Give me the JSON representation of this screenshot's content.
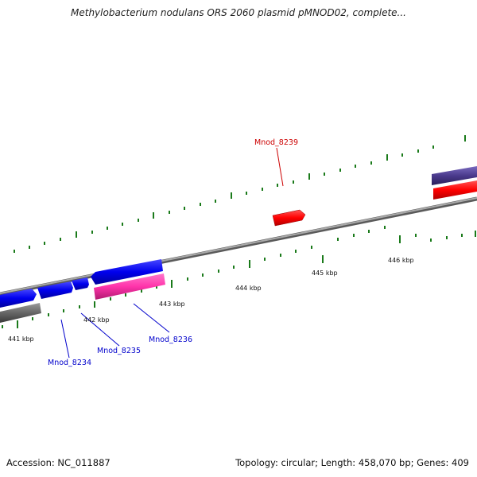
{
  "title": "Methylobacterium nodulans ORS 2060 plasmid pMNOD02, complete...",
  "accession": "Accession: NC_011887",
  "summary": "Topology: circular; Length: 458,070 bp; Genes: 409",
  "kbp_labels": [
    "441 kbp",
    "442 kbp",
    "443 kbp",
    "444 kbp",
    "445 kbp",
    "446 kbp"
  ],
  "gene_labels": {
    "mnod_8239": "Mnod_8239",
    "mnod_8234": "Mnod_8234",
    "mnod_8235": "Mnod_8235",
    "mnod_8236": "Mnod_8236"
  },
  "colors": {
    "forward_cds": "#ff0000",
    "reverse_cds": "#0000ee",
    "pink_cds": "#ff33aa",
    "gray_feature": "#666666",
    "purple_feature": "#4a3a8c",
    "tick": "#1a7a1a",
    "backbone": "#888888",
    "label_red": "#cc0000",
    "label_blue": "#0000cc"
  }
}
